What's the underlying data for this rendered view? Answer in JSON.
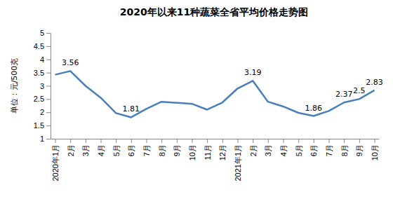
{
  "chart_data": {
    "type": "line",
    "title": "2020年以来11种蔬菜全省平均价格走势图",
    "y_label": "单位：元/500克",
    "categories": [
      "2020年1月",
      "2月",
      "3月",
      "4月",
      "5月",
      "6月",
      "7月",
      "8月",
      "9月",
      "10月",
      "11月",
      "12月",
      "2021年1月",
      "2月",
      "3月",
      "4月",
      "5月",
      "6月",
      "7月",
      "8月",
      "9月",
      "10月"
    ],
    "values": [
      3.42,
      3.56,
      3.0,
      2.55,
      1.97,
      1.81,
      2.13,
      2.4,
      2.36,
      2.32,
      2.1,
      2.37,
      2.9,
      3.19,
      2.4,
      2.22,
      1.98,
      1.86,
      2.05,
      2.37,
      2.5,
      2.83
    ],
    "value_labels": [
      null,
      "3.56",
      null,
      null,
      null,
      "1.81",
      null,
      null,
      null,
      null,
      null,
      null,
      null,
      "3.19",
      null,
      null,
      null,
      "1.86",
      null,
      "2.37",
      "2.5",
      "2.83"
    ],
    "data_labels": true,
    "color": "#4a7ebb",
    "marker": "none",
    "ylim": [
      1,
      5
    ],
    "yticks": [
      1,
      1.5,
      2,
      2.5,
      3,
      3.5,
      4,
      4.5,
      5
    ],
    "grid": false
  }
}
